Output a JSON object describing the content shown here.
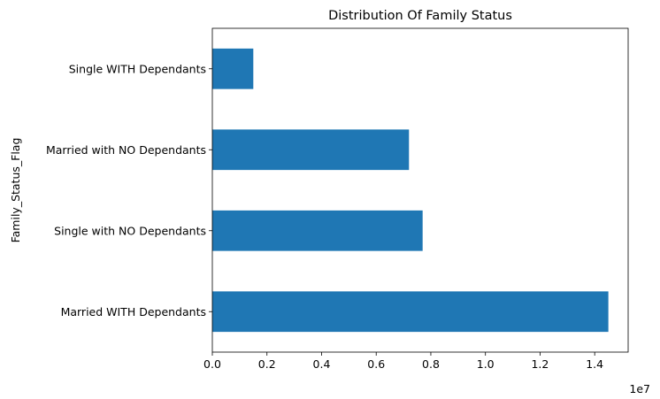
{
  "chart_data": {
    "type": "bar",
    "orientation": "horizontal",
    "title": "Distribution Of Family Status",
    "ylabel": "Family_Status_Flag",
    "xlabel": "",
    "x_offset_text": "1e7",
    "x_scale": 10000000,
    "categories": [
      "Married WITH Dependants",
      "Single with NO Dependants",
      "Married with NO Dependants",
      "Single WITH Dependants"
    ],
    "values": [
      14500000,
      7700000,
      7200000,
      1500000
    ],
    "xlim": [
      0,
      15225000
    ],
    "x_ticks": [
      0,
      2000000,
      4000000,
      6000000,
      8000000,
      10000000,
      12000000,
      14000000
    ],
    "x_tick_labels": [
      "0.0",
      "0.2",
      "0.4",
      "0.6",
      "0.8",
      "1.0",
      "1.2",
      "1.4"
    ],
    "bar_color": "#1f77b4",
    "grid": false,
    "legend": "none"
  }
}
